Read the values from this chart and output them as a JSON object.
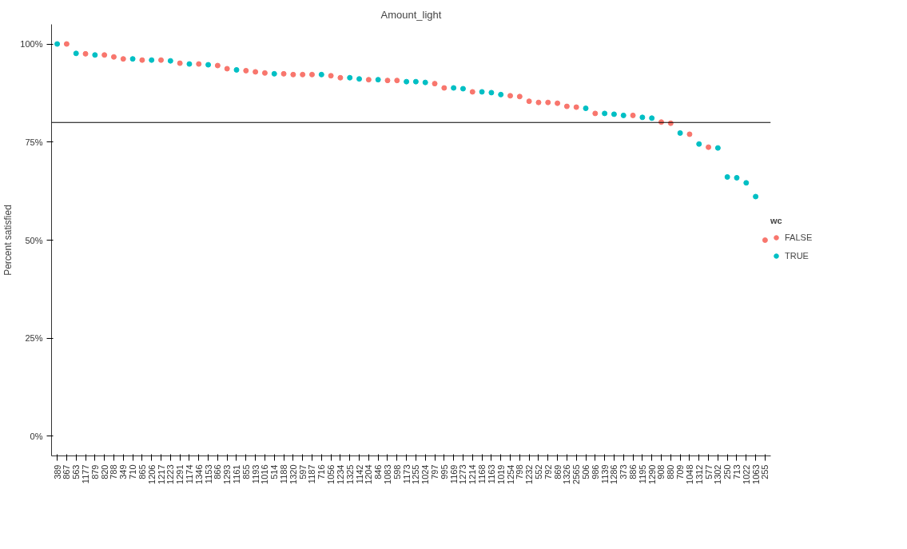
{
  "chart_data": {
    "type": "scatter",
    "title": "Amount_light",
    "ylabel": "Percent satisfied",
    "legend_title": "wc",
    "legend": "right",
    "grid": false,
    "marker": "circle",
    "categories": [
      "389",
      "867",
      "563",
      "1177",
      "879",
      "820",
      "788",
      "349",
      "710",
      "865",
      "1206",
      "1217",
      "1223",
      "1291",
      "1174",
      "1346",
      "1153",
      "866",
      "1293",
      "1161",
      "855",
      "1193",
      "1016",
      "514",
      "1188",
      "1320",
      "597",
      "1187",
      "716",
      "1056",
      "1234",
      "1325",
      "1142",
      "1204",
      "846",
      "1083",
      "598",
      "1173",
      "1255",
      "1024",
      "797",
      "995",
      "1169",
      "1273",
      "1214",
      "1168",
      "1163",
      "1019",
      "1254",
      "798",
      "1232",
      "552",
      "792",
      "869",
      "1326",
      "2565",
      "506",
      "986",
      "1139",
      "1286",
      "373",
      "886",
      "1195",
      "1290",
      "908",
      "880",
      "709",
      "1048",
      "1312",
      "577",
      "1302",
      "250",
      "713",
      "1022",
      "1063",
      "255"
    ],
    "ylim": [
      -5,
      105
    ],
    "yticks": [
      {
        "value": 0,
        "label": "0%"
      },
      {
        "value": 25,
        "label": "25%"
      },
      {
        "value": 50,
        "label": "50%"
      },
      {
        "value": 75,
        "label": "75%"
      },
      {
        "value": 100,
        "label": "100%"
      }
    ],
    "ref_lines": [
      {
        "axis": "y",
        "value": 80,
        "label": null,
        "color": "#000000"
      }
    ],
    "series": [
      {
        "name": "FALSE",
        "color": "#f8766d",
        "values": [
          null,
          100,
          null,
          97.5,
          null,
          97.2,
          96.7,
          96.2,
          null,
          95.9,
          null,
          95.9,
          null,
          95.1,
          null,
          94.9,
          null,
          94.5,
          93.7,
          null,
          93.2,
          92.9,
          92.6,
          null,
          92.4,
          92.2,
          92.2,
          92.2,
          null,
          91.9,
          91.4,
          null,
          null,
          90.9,
          null,
          90.7,
          90.7,
          null,
          null,
          null,
          89.9,
          88.8,
          null,
          null,
          87.8,
          null,
          null,
          null,
          86.8,
          86.6,
          85.4,
          85.1,
          85.1,
          84.9,
          84.1,
          83.9,
          null,
          82.3,
          null,
          null,
          null,
          81.8,
          null,
          null,
          80.1,
          79.8,
          null,
          77.0,
          null,
          73.7,
          null,
          null,
          null,
          null,
          null,
          50
        ]
      },
      {
        "name": "TRUE",
        "color": "#00bfc4",
        "values": [
          100,
          null,
          97.6,
          null,
          97.2,
          null,
          null,
          null,
          96.2,
          null,
          95.9,
          null,
          95.7,
          null,
          94.9,
          null,
          94.7,
          null,
          null,
          93.4,
          null,
          null,
          null,
          92.4,
          null,
          null,
          null,
          null,
          92.2,
          null,
          null,
          91.4,
          91.1,
          null,
          90.9,
          null,
          null,
          90.4,
          90.4,
          90.2,
          null,
          null,
          88.8,
          88.6,
          null,
          87.8,
          87.6,
          87.1,
          null,
          null,
          null,
          null,
          null,
          null,
          null,
          null,
          83.6,
          null,
          82.3,
          82.1,
          81.8,
          null,
          81.3,
          81.1,
          null,
          null,
          77.3,
          null,
          74.5,
          null,
          73.5,
          66.1,
          65.9,
          64.6,
          61.1,
          null
        ]
      }
    ]
  }
}
